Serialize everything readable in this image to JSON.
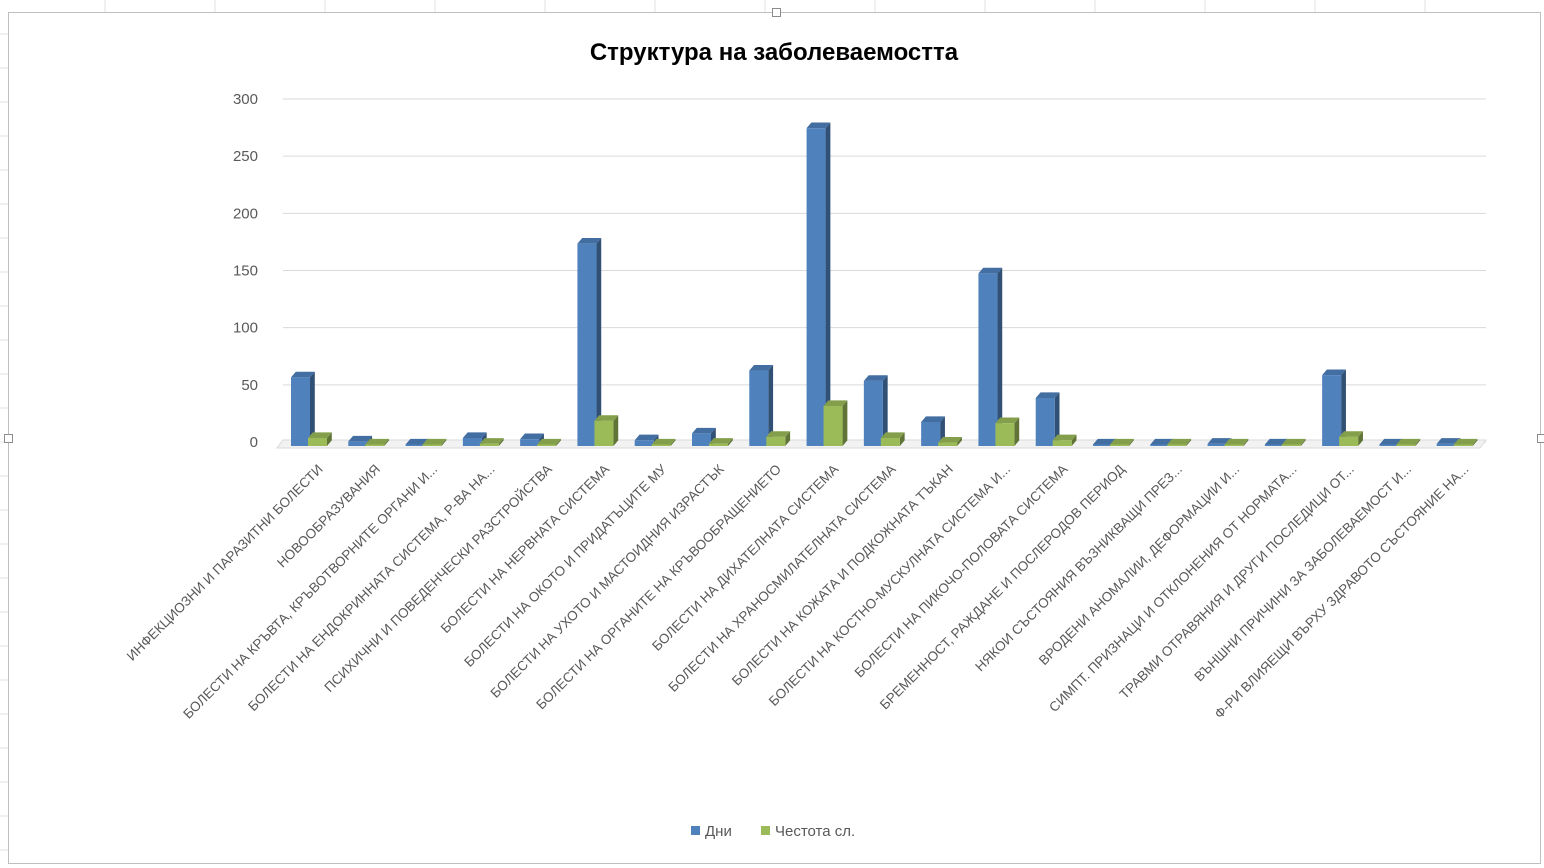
{
  "chart_data": {
    "type": "bar",
    "title": "Структура на заболеваемостта",
    "xlabel": "",
    "ylabel": "",
    "ylim": [
      0,
      300
    ],
    "yticks": [
      0,
      50,
      100,
      150,
      200,
      250,
      300
    ],
    "grid": true,
    "legend_position": "bottom",
    "style": "3d-clustered-column",
    "categories": [
      "ИНФЕКЦИОЗНИ И ПАРАЗИТНИ БОЛЕСТИ",
      "НОВООБРАЗУВАНИЯ",
      "БОЛЕСТИ НА КРЪВТА, КРЪВОТВОРНИТЕ ОРГАНИ И...",
      "БОЛЕСТИ НА ЕНДОКРИННАТА СИСТЕМА, Р-ВА НА...",
      "ПСИХИЧНИ И ПОВЕДЕНЧЕСКИ РАЗСТРОЙСТВА",
      "БОЛЕСТИ НА НЕРВНАТА СИСТЕМА",
      "БОЛЕСТИ НА ОКОТО И ПРИДАТЪЦИТЕ МУ",
      "БОЛЕСТИ НА УХОТО И МАСТОИДНИЯ ИЗРАСТЪК",
      "БОЛЕСТИ НА ОРГАНИТЕ НА КРЪВООБРАЩЕНИЕТО",
      "БОЛЕСТИ НА ДИХАТЕЛНАТА СИСТЕМА",
      "БОЛЕСТИ НА ХРАНОСМИЛАТЕЛНАТА СИСТЕМА",
      "БОЛЕСТИ НА КОЖАТА И ПОДКОЖНАТА ТЪКАН",
      "БОЛЕСТИ НА КОСТНО-МУСКУЛНАТА СИСТЕМА И...",
      "БОЛЕСТИ НА ПИКОЧО-ПОЛОВАТА СИСТЕМА",
      "БРЕМЕННОСТ, РАЖДАНЕ И ПОСЛЕРОДОВ ПЕРИОД",
      "НЯКОИ СЪСТОЯНИЯ ВЪЗНИКВАЩИ ПРЕЗ...",
      "ВРОДЕНИ АНОМАЛИИ, ДЕФОРМАЦИИ И...",
      "СИМПТ. ПРИЗНАЦИ И ОТКЛОНЕНИЯ ОТ НОРМАТА...",
      "ТРАВМИ ОТРАВЯНИЯ И ДРУГИ ПОСЛЕДИЦИ ОТ...",
      "ВЪНШНИ ПРИЧИНИ ЗА ЗАБОЛЕВАЕМОСТ И...",
      "Ф-РИ ВЛИЯЕЩИ ВЪРХУ ЗДРАВОТО СЪСТОЯНИЕ НА..."
    ],
    "series": [
      {
        "name": "Дни",
        "color": "#4f81bd",
        "values": [
          60,
          4,
          1,
          7,
          6,
          177,
          5,
          11,
          66,
          278,
          57,
          21,
          151,
          42,
          1,
          0,
          2,
          0,
          62,
          0,
          2
        ]
      },
      {
        "name": "Честота сл.",
        "color": "#9bbb59",
        "values": [
          7,
          1,
          0,
          2,
          1,
          22,
          1,
          2,
          8,
          35,
          7,
          3,
          20,
          5,
          0,
          0,
          1,
          0,
          8,
          0,
          1
        ]
      }
    ]
  }
}
